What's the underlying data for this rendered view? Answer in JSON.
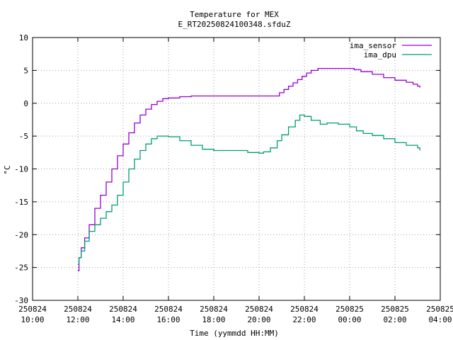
{
  "chart_data": {
    "type": "line",
    "title": "Temperature for MEX",
    "subtitle": "E_RT20250824100348.sfduZ",
    "xlabel": "Time (yymmdd HH:MM)",
    "ylabel": "°C",
    "xlim": [
      10,
      28
    ],
    "ylim": [
      -30,
      10
    ],
    "grid": true,
    "legend_position": "top-right",
    "x_ticks": [
      {
        "value": 10,
        "date": "250824",
        "time": "10:00"
      },
      {
        "value": 12,
        "date": "250824",
        "time": "12:00"
      },
      {
        "value": 14,
        "date": "250824",
        "time": "14:00"
      },
      {
        "value": 16,
        "date": "250824",
        "time": "16:00"
      },
      {
        "value": 18,
        "date": "250824",
        "time": "18:00"
      },
      {
        "value": 20,
        "date": "250824",
        "time": "20:00"
      },
      {
        "value": 22,
        "date": "250824",
        "time": "22:00"
      },
      {
        "value": 24,
        "date": "250825",
        "time": "00:00"
      },
      {
        "value": 26,
        "date": "250825",
        "time": "02:00"
      },
      {
        "value": 28,
        "date": "250825",
        "time": "04:00"
      }
    ],
    "y_ticks": [
      10,
      5,
      0,
      -5,
      -10,
      -15,
      -20,
      -25,
      -30
    ],
    "series": [
      {
        "name": "ima_sensor",
        "color": "#9400d3",
        "points": [
          [
            12.0,
            -25.5
          ],
          [
            12.05,
            -23.5
          ],
          [
            12.15,
            -22.0
          ],
          [
            12.3,
            -20.5
          ],
          [
            12.5,
            -18.5
          ],
          [
            12.75,
            -16.0
          ],
          [
            13.0,
            -14.0
          ],
          [
            13.25,
            -12.0
          ],
          [
            13.5,
            -10.0
          ],
          [
            13.75,
            -8.0
          ],
          [
            14.0,
            -6.2
          ],
          [
            14.25,
            -4.5
          ],
          [
            14.5,
            -3.0
          ],
          [
            14.75,
            -1.8
          ],
          [
            15.0,
            -0.9
          ],
          [
            15.25,
            -0.2
          ],
          [
            15.5,
            0.3
          ],
          [
            15.75,
            0.7
          ],
          [
            16.0,
            0.8
          ],
          [
            16.5,
            1.0
          ],
          [
            17.0,
            1.1
          ],
          [
            18.0,
            1.1
          ],
          [
            19.0,
            1.1
          ],
          [
            20.0,
            1.1
          ],
          [
            20.6,
            1.1
          ],
          [
            20.9,
            1.6
          ],
          [
            21.1,
            2.1
          ],
          [
            21.3,
            2.6
          ],
          [
            21.5,
            3.1
          ],
          [
            21.7,
            3.6
          ],
          [
            21.9,
            4.1
          ],
          [
            22.1,
            4.6
          ],
          [
            22.3,
            5.0
          ],
          [
            22.6,
            5.3
          ],
          [
            23.0,
            5.3
          ],
          [
            24.0,
            5.3
          ],
          [
            24.2,
            5.1
          ],
          [
            24.5,
            4.8
          ],
          [
            25.0,
            4.4
          ],
          [
            25.5,
            3.9
          ],
          [
            26.0,
            3.5
          ],
          [
            26.5,
            3.2
          ],
          [
            26.8,
            2.9
          ],
          [
            27.0,
            2.6
          ],
          [
            27.1,
            2.4
          ]
        ]
      },
      {
        "name": "ima_dpu",
        "color": "#009e73",
        "points": [
          [
            12.0,
            -24.5
          ],
          [
            12.05,
            -23.5
          ],
          [
            12.15,
            -22.5
          ],
          [
            12.3,
            -21.0
          ],
          [
            12.5,
            -19.5
          ],
          [
            12.75,
            -18.5
          ],
          [
            13.0,
            -17.5
          ],
          [
            13.25,
            -16.5
          ],
          [
            13.5,
            -15.5
          ],
          [
            13.75,
            -14.0
          ],
          [
            14.0,
            -12.0
          ],
          [
            14.25,
            -10.0
          ],
          [
            14.5,
            -8.5
          ],
          [
            14.75,
            -7.2
          ],
          [
            15.0,
            -6.2
          ],
          [
            15.25,
            -5.4
          ],
          [
            15.5,
            -5.0
          ],
          [
            16.0,
            -5.1
          ],
          [
            16.5,
            -5.7
          ],
          [
            17.0,
            -6.4
          ],
          [
            17.5,
            -7.0
          ],
          [
            18.0,
            -7.2
          ],
          [
            19.0,
            -7.2
          ],
          [
            19.5,
            -7.5
          ],
          [
            20.0,
            -7.6
          ],
          [
            20.2,
            -7.4
          ],
          [
            20.5,
            -6.8
          ],
          [
            20.8,
            -5.7
          ],
          [
            21.0,
            -4.8
          ],
          [
            21.3,
            -3.6
          ],
          [
            21.6,
            -2.6
          ],
          [
            21.8,
            -1.8
          ],
          [
            22.0,
            -2.0
          ],
          [
            22.3,
            -2.6
          ],
          [
            22.7,
            -3.2
          ],
          [
            23.0,
            -3.0
          ],
          [
            23.5,
            -3.2
          ],
          [
            24.0,
            -3.6
          ],
          [
            24.3,
            -4.2
          ],
          [
            24.6,
            -4.6
          ],
          [
            25.0,
            -4.9
          ],
          [
            25.5,
            -5.4
          ],
          [
            26.0,
            -6.0
          ],
          [
            26.5,
            -6.4
          ],
          [
            27.0,
            -6.8
          ],
          [
            27.1,
            -7.2
          ]
        ]
      }
    ]
  }
}
